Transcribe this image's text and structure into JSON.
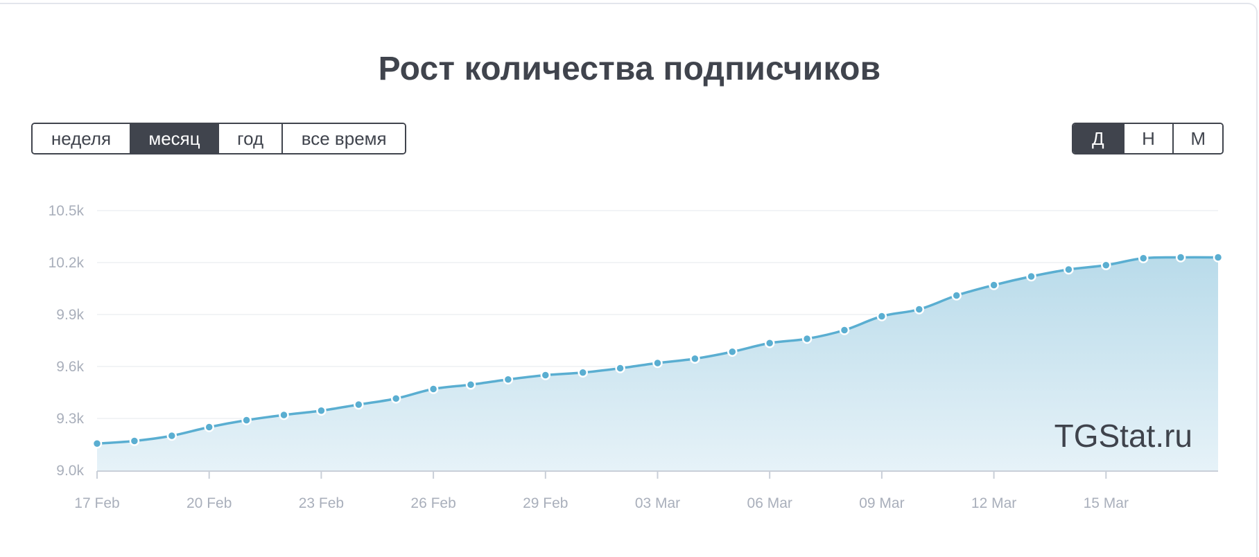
{
  "title": "Рост количества подписчиков",
  "period_buttons": [
    {
      "label": "неделя",
      "active": false
    },
    {
      "label": "месяц",
      "active": true
    },
    {
      "label": "год",
      "active": false
    },
    {
      "label": "все время",
      "active": false
    }
  ],
  "interval_buttons": [
    {
      "label": "Д",
      "active": true
    },
    {
      "label": "Н",
      "active": false
    },
    {
      "label": "М",
      "active": false
    }
  ],
  "watermark": "TGStat.ru",
  "colors": {
    "dark": "#40444d",
    "line": "#5aaed1",
    "area_top": "#b9dbea",
    "area_bottom": "#e6f2f8",
    "grid": "#eef0f4",
    "tick": "#a9afbb"
  },
  "chart_data": {
    "type": "area",
    "title": "Рост количества подписчиков",
    "xlabel": "",
    "ylabel": "",
    "x": [
      "17 Feb",
      "18 Feb",
      "19 Feb",
      "20 Feb",
      "21 Feb",
      "22 Feb",
      "23 Feb",
      "24 Feb",
      "25 Feb",
      "26 Feb",
      "27 Feb",
      "28 Feb",
      "29 Feb",
      "01 Mar",
      "02 Mar",
      "03 Mar",
      "04 Mar",
      "05 Mar",
      "06 Mar",
      "07 Mar",
      "08 Mar",
      "09 Mar",
      "10 Mar",
      "11 Mar",
      "12 Mar",
      "13 Mar",
      "14 Mar",
      "15 Mar",
      "16 Mar",
      "17 Mar",
      "18 Mar"
    ],
    "x_tick_labels": [
      "17 Feb",
      "20 Feb",
      "23 Feb",
      "26 Feb",
      "29 Feb",
      "03 Mar",
      "06 Mar",
      "09 Mar",
      "12 Mar",
      "15 Mar"
    ],
    "x_tick_every": 3,
    "y_ticks": [
      9000,
      9300,
      9600,
      9900,
      10200,
      10500
    ],
    "y_tick_labels": [
      "9.0k",
      "9.3k",
      "9.6k",
      "9.9k",
      "10.2k",
      "10.5k"
    ],
    "ylim": [
      9000,
      10500
    ],
    "grid": true,
    "series": [
      {
        "values": [
          9155,
          9170,
          9200,
          9250,
          9290,
          9320,
          9345,
          9380,
          9415,
          9470,
          9495,
          9525,
          9550,
          9565,
          9590,
          9620,
          9645,
          9685,
          9735,
          9760,
          9810,
          9890,
          9930,
          10010,
          10070,
          10120,
          10160,
          10185,
          10225,
          10230,
          10230
        ]
      }
    ]
  }
}
